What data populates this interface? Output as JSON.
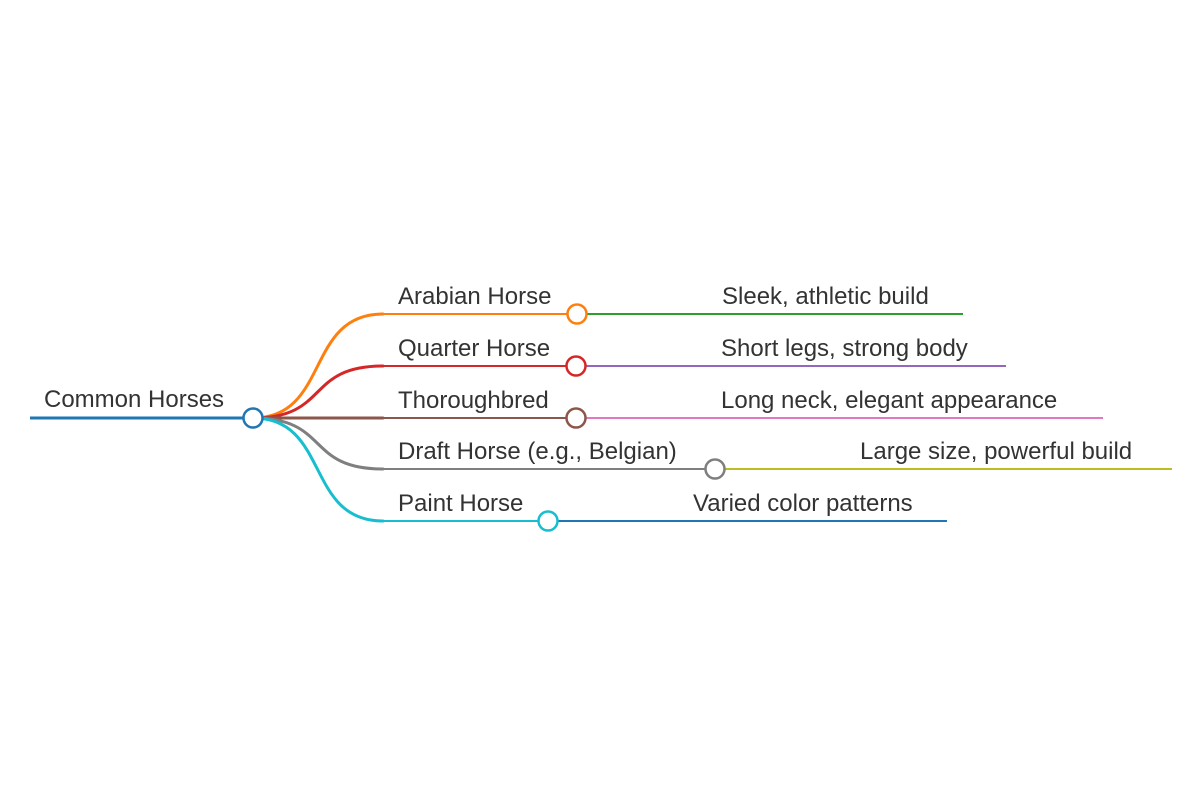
{
  "root": {
    "label": "Common Horses",
    "color": "#1f77b4"
  },
  "branches": [
    {
      "label": "Arabian Horse",
      "color": "#ff7f0e",
      "child": {
        "label": "Sleek, athletic build",
        "color": "#2ca02c"
      }
    },
    {
      "label": "Quarter Horse",
      "color": "#d62728",
      "child": {
        "label": "Short legs, strong body",
        "color": "#9467bd"
      }
    },
    {
      "label": "Thoroughbred",
      "color": "#8c564b",
      "child": {
        "label": "Long neck, elegant appearance",
        "color": "#e377c2"
      }
    },
    {
      "label": "Draft Horse (e.g., Belgian)",
      "color": "#7f7f7f",
      "child": {
        "label": "Large size, powerful build",
        "color": "#bcbd22"
      }
    },
    {
      "label": "Paint Horse",
      "color": "#17becf",
      "child": {
        "label": "Varied color patterns",
        "color": "#1f77b4"
      }
    }
  ]
}
